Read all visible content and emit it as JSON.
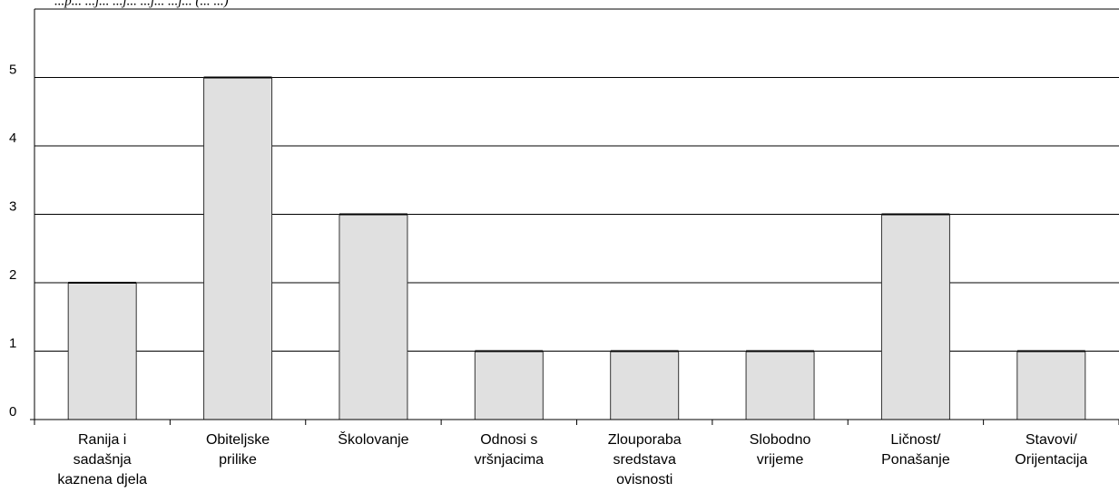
{
  "caption": "...p... ...j... ...j... ...j... ...j... (... ...)",
  "chart_data": {
    "type": "bar",
    "categories": [
      [
        "Ranija i",
        "sadašnja",
        "kaznena djela"
      ],
      [
        "Obiteljske",
        "prilike"
      ],
      [
        "Školovanje"
      ],
      [
        "Odnosi s",
        "vršnjacima"
      ],
      [
        "Zlouporaba",
        "sredstava",
        "ovisnosti"
      ],
      [
        "Slobodno",
        "vrijeme"
      ],
      [
        "Ličnost/",
        "Ponašanje"
      ],
      [
        "Stavovi/",
        "Orijentacija"
      ]
    ],
    "values": [
      2,
      5,
      3,
      1,
      1,
      1,
      3,
      1
    ],
    "yticks": [
      0,
      1,
      2,
      3,
      4,
      5
    ],
    "ylim": [
      0,
      6
    ],
    "grid": true,
    "bar_color": "#e0e0e0",
    "bar_stroke": "#333333",
    "grid_color": "#000000",
    "legend": "none"
  }
}
